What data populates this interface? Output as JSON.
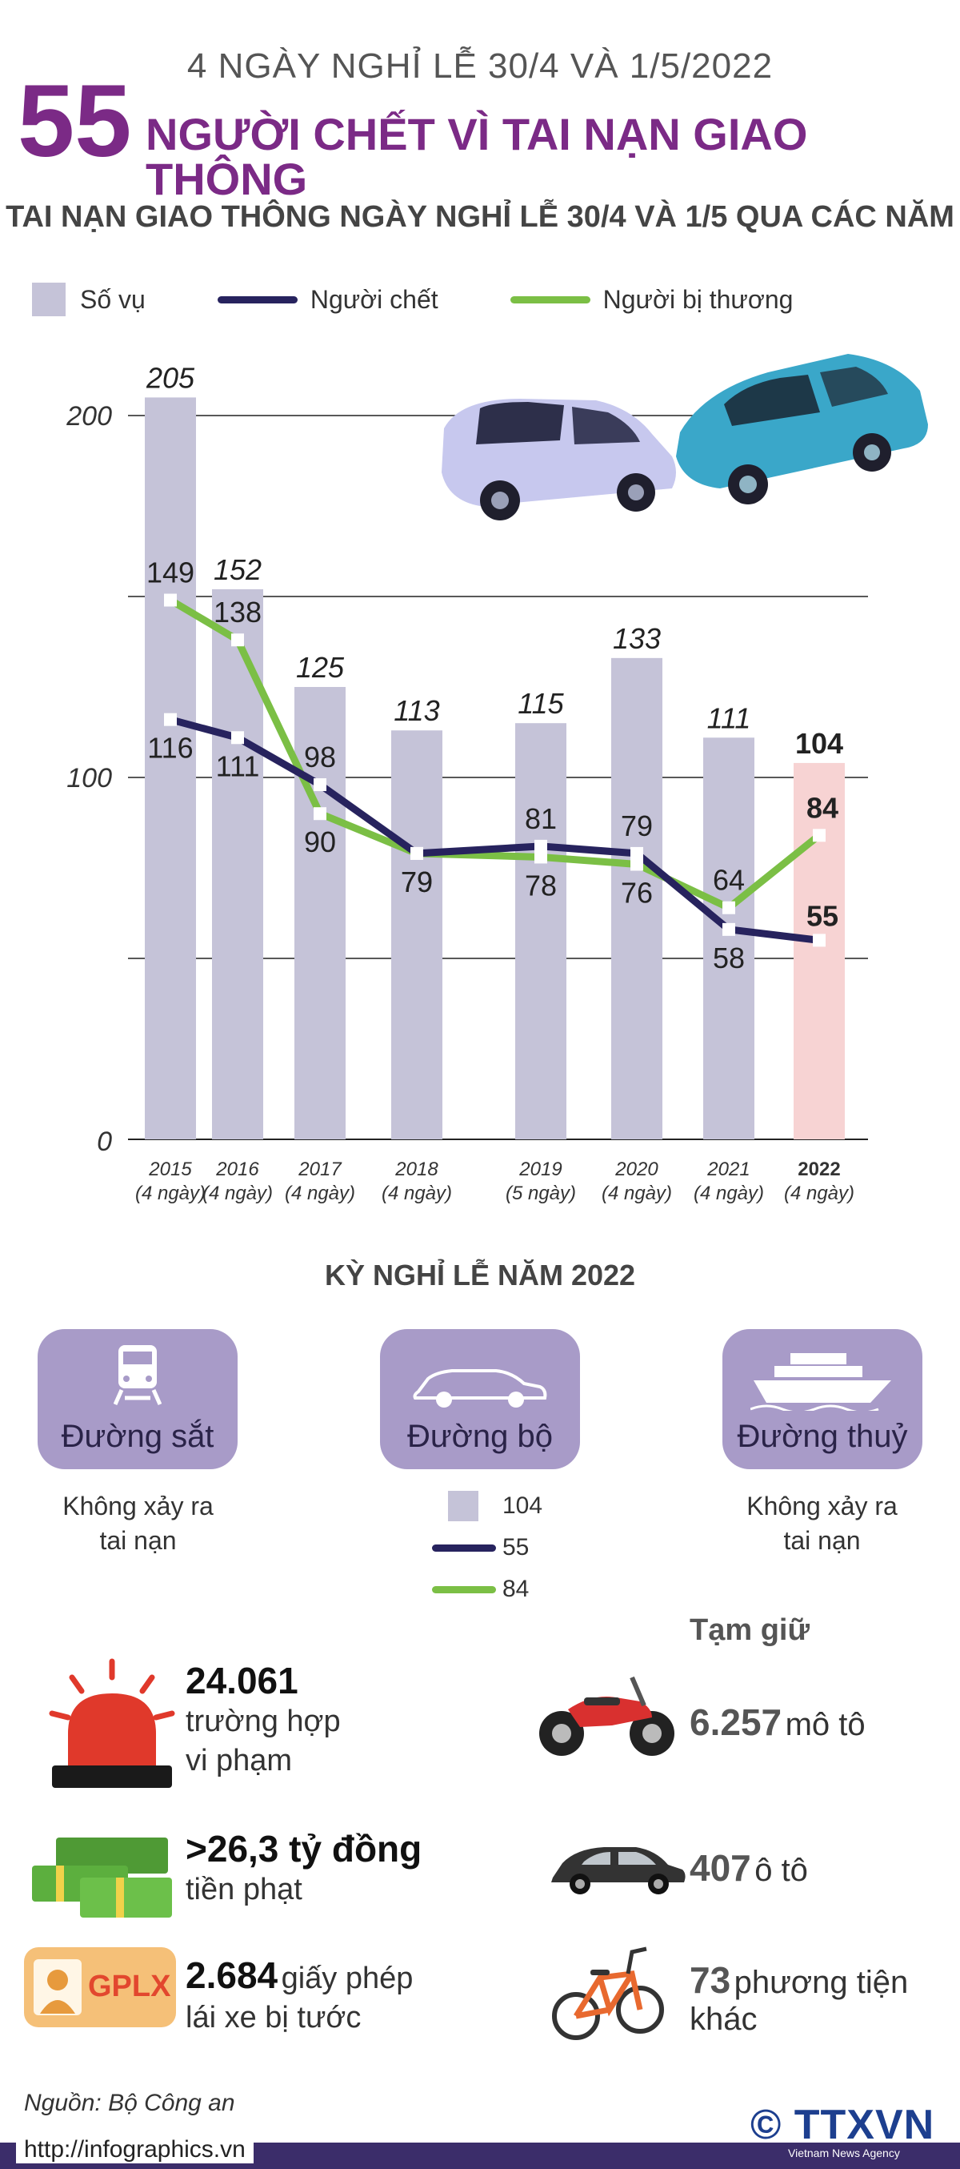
{
  "header": {
    "supertitle": "4 NGÀY NGHỈ LỄ 30/4 VÀ 1/5/2022",
    "big_number": "55",
    "headline": "NGƯỜI CHẾT VÌ TAI NẠN GIAO THÔNG",
    "subtitle": "TAI NẠN GIAO THÔNG NGÀY NGHỈ LỄ 30/4 VÀ 1/5 QUA CÁC NĂM"
  },
  "legend": {
    "cases": "Số vụ",
    "deaths": "Người chết",
    "injured": "Người bị thương"
  },
  "colors": {
    "bar": "#c5c3d8",
    "bar_highlight": "#f7d3d3",
    "deaths": "#27235e",
    "injured": "#7bbf45",
    "title": "#7b2a86",
    "card": "#a89bc8"
  },
  "chart_data": {
    "type": "bar",
    "categories": [
      "2015",
      "2016",
      "2017",
      "2018",
      "2019",
      "2020",
      "2021",
      "2022"
    ],
    "category_notes": [
      "(4 ngày)",
      "(4 ngày)",
      "(4 ngày)",
      "(4 ngày)",
      "(5 ngày)",
      "(4 ngày)",
      "(4 ngày)",
      "(4 ngày)"
    ],
    "series": [
      {
        "name": "Số vụ",
        "type": "bar",
        "values": [
          205,
          152,
          125,
          113,
          115,
          133,
          111,
          104
        ]
      },
      {
        "name": "Người chết",
        "type": "line",
        "values": [
          116,
          111,
          98,
          79,
          81,
          79,
          58,
          55
        ]
      },
      {
        "name": "Người bị thương",
        "type": "line",
        "values": [
          149,
          138,
          90,
          79,
          78,
          76,
          64,
          84
        ]
      }
    ],
    "ylim": [
      0,
      200
    ],
    "yticks": [
      0,
      100,
      200
    ],
    "gridlines": [
      0,
      50,
      100,
      150,
      200
    ]
  },
  "section2": {
    "title": "KỲ NGHỈ LỄ NĂM 2022",
    "rail": {
      "label": "Đường sắt",
      "note_line1": "Không xảy ra",
      "note_line2": "tai nạn"
    },
    "road": {
      "label": "Đường bộ",
      "legend_values": [
        "104",
        "55",
        "84"
      ]
    },
    "water": {
      "label": "Đường thuỷ",
      "note_line1": "Không xảy ra",
      "note_line2": "tai nạn"
    }
  },
  "stats": {
    "violations": {
      "number": "24.061",
      "line1": "trường hợp",
      "line2": "vi phạm"
    },
    "fines": {
      "number": ">26,3 tỷ đồng",
      "line1": "tiền phạt"
    },
    "licenses": {
      "badge": "GPLX",
      "number": "2.684",
      "line1": "giấy phép",
      "line2": "lái xe bị tước"
    }
  },
  "seized": {
    "title": "Tạm giữ",
    "motorbikes": {
      "number": "6.257",
      "label": "mô tô"
    },
    "cars": {
      "number": "407",
      "label": "ô tô"
    },
    "others": {
      "number": "73",
      "label": "phương tiện",
      "label2": "khác"
    }
  },
  "footer": {
    "source": "Nguồn: Bộ Công an",
    "url": "http://infographics.vn",
    "brand": "© TTXVN",
    "brand_sub": "Vietnam News Agency"
  }
}
